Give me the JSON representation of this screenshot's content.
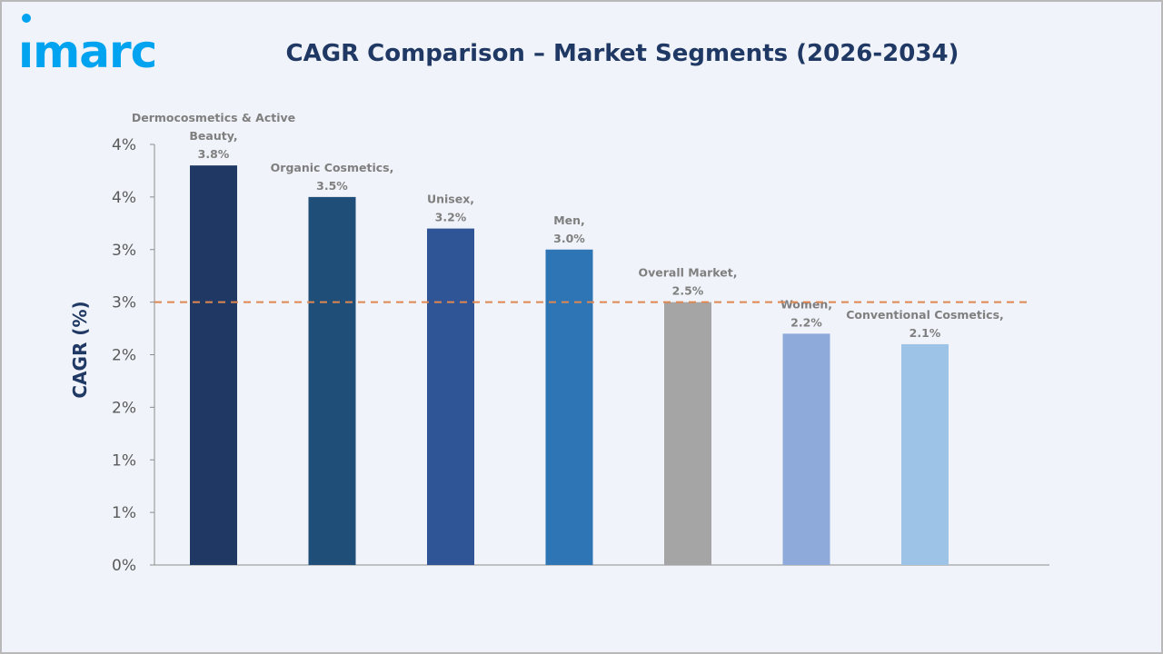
{
  "logo": {
    "text": "imarc",
    "color": "#00a3ef"
  },
  "chart_data": {
    "type": "bar",
    "title": "CAGR Comparison – Market Segments (2026-2034)",
    "xlabel": "",
    "ylabel": "CAGR (%)",
    "ylim": [
      0,
      4
    ],
    "yticks": [
      0,
      0.5,
      1,
      1.5,
      2,
      2.5,
      3,
      3.5,
      4
    ],
    "ytick_labels": [
      "0%",
      "1%",
      "1%",
      "2%",
      "2%",
      "3%",
      "3%",
      "4%",
      "4%"
    ],
    "grid": false,
    "categories": [
      "Dermocosmetics & Active Beauty",
      "Organic Cosmetics",
      "Unisex",
      "Men",
      "Overall Market",
      "Women",
      "Conventional Cosmetics"
    ],
    "values": [
      3.8,
      3.5,
      3.2,
      3.0,
      2.5,
      2.2,
      2.1
    ],
    "data_labels": [
      [
        "Dermocosmetics & Active",
        "Beauty,",
        "3.8%"
      ],
      [
        "Organic Cosmetics,",
        "3.5%"
      ],
      [
        "Unisex,",
        "3.2%"
      ],
      [
        "Men,",
        "3.0%"
      ],
      [
        "Overall Market,",
        "2.5%"
      ],
      [
        "Women,",
        "2.2%"
      ],
      [
        "Conventional Cosmetics,",
        "2.1%"
      ]
    ],
    "colors": [
      "#1f3864",
      "#1f4e79",
      "#2f5597",
      "#2e75b6",
      "#a5a5a5",
      "#8eaadb",
      "#9dc3e6"
    ],
    "reference_line": {
      "value": 2.5,
      "style": "dashed",
      "color": "#e0874f"
    }
  }
}
